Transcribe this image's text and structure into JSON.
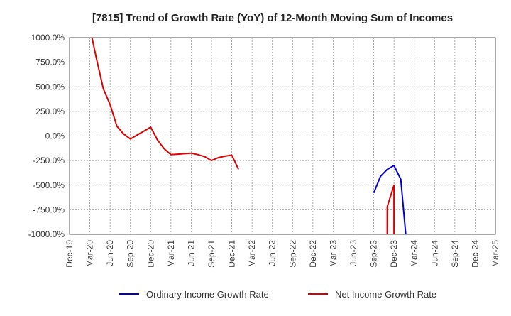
{
  "chart_data": {
    "type": "line",
    "title": "[7815]  Trend of Growth Rate (YoY) of 12-Month Moving Sum of Incomes",
    "xlabel": "",
    "ylabel": "",
    "ylim": [
      -1000,
      1000
    ],
    "yticks": [
      1000,
      750,
      500,
      250,
      0,
      -250,
      -500,
      -750,
      -1000
    ],
    "ytick_labels": [
      "1000.0%",
      "750.0%",
      "500.0%",
      "250.0%",
      "0.0%",
      "-250.0%",
      "-500.0%",
      "-750.0%",
      "-1000.0%"
    ],
    "xlim": [
      "2019-12",
      "2025-03"
    ],
    "xtick_labels": [
      "Dec-19",
      "Mar-20",
      "Jun-20",
      "Sep-20",
      "Dec-20",
      "Mar-21",
      "Jun-21",
      "Sep-21",
      "Dec-21",
      "Mar-22",
      "Jun-22",
      "Sep-22",
      "Dec-22",
      "Mar-23",
      "Jun-23",
      "Sep-23",
      "Dec-23",
      "Mar-24",
      "Jun-24",
      "Sep-24",
      "Dec-24",
      "Mar-25"
    ],
    "grid": true,
    "legend_position": "bottom",
    "series": [
      {
        "name": "Ordinary Income Growth Rate",
        "color": "#0000cc",
        "points": [
          [
            "2023-09",
            -580
          ],
          [
            "2023-10",
            -410
          ],
          [
            "2023-11",
            -340
          ],
          [
            "2023-12",
            -300
          ],
          [
            "2024-01",
            -440
          ],
          [
            "2024-02",
            -1200
          ]
        ]
      },
      {
        "name": "Net Income Growth Rate",
        "color": "#dd0000",
        "points": [
          [
            "2020-03",
            1100
          ],
          [
            "2020-04",
            780
          ],
          [
            "2020-05",
            480
          ],
          [
            "2020-06",
            320
          ],
          [
            "2020-07",
            100
          ],
          [
            "2020-08",
            20
          ],
          [
            "2020-09",
            -30
          ],
          [
            "2020-10",
            10
          ],
          [
            "2020-11",
            50
          ],
          [
            "2020-12",
            90
          ],
          [
            "2021-01",
            -40
          ],
          [
            "2021-02",
            -130
          ],
          [
            "2021-03",
            -190
          ],
          [
            "2021-04",
            -185
          ],
          [
            "2021-05",
            -180
          ],
          [
            "2021-06",
            -175
          ],
          [
            "2021-07",
            -190
          ],
          [
            "2021-08",
            -210
          ],
          [
            "2021-09",
            -250
          ],
          [
            "2021-10",
            -220
          ],
          [
            "2021-11",
            -205
          ],
          [
            "2021-12",
            -195
          ],
          [
            "2022-01",
            -340
          ],
          null,
          [
            "2023-11",
            -1200
          ],
          [
            "2023-11",
            -720
          ],
          [
            "2023-12",
            -500
          ],
          [
            "2023-12",
            -1200
          ]
        ]
      }
    ]
  }
}
